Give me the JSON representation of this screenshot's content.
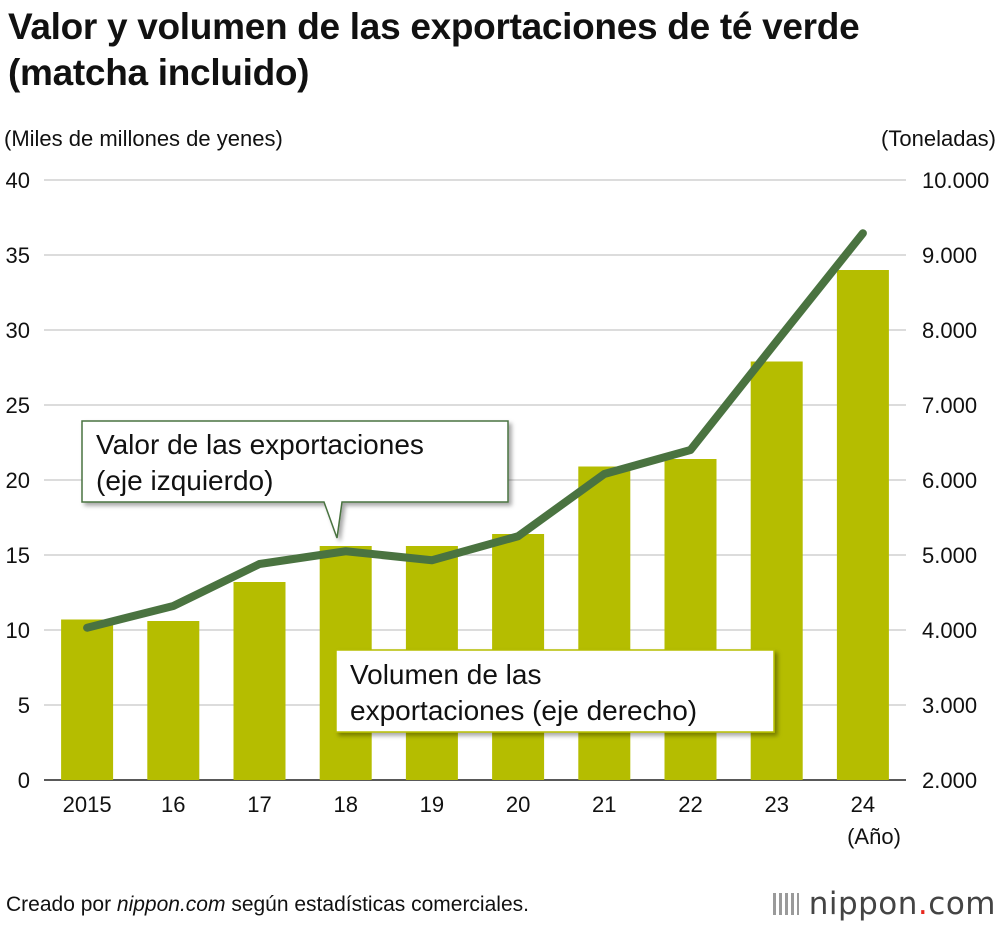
{
  "title": "Valor y volumen de las exportaciones de té verde (matcha incluido)",
  "footer": {
    "prefix": "Creado por ",
    "site": "nippon.com",
    "suffix": " según estadísticas comerciales."
  },
  "logo": {
    "name": "nippon",
    "dot": ".",
    "tld": "com"
  },
  "chart_data": {
    "type": "bar+line",
    "categories": [
      "2015",
      "16",
      "17",
      "18",
      "19",
      "20",
      "21",
      "22",
      "23",
      "24"
    ],
    "x_unit": "(Año)",
    "left_axis": {
      "label": "(Miles de millones de yenes)",
      "ylim": [
        0,
        40
      ],
      "ticks": [
        "0",
        "5",
        "10",
        "15",
        "20",
        "25",
        "30",
        "35",
        "40"
      ]
    },
    "right_axis": {
      "label": "(Toneladas)",
      "ylim": [
        2000,
        10000
      ],
      "ticks": [
        "2.000",
        "3.000",
        "4.000",
        "5.000",
        "6.000",
        "7.000",
        "8.000",
        "9.000",
        "10.000"
      ]
    },
    "series": [
      {
        "name": "Valor de las exportaciones (eje izquierdo)",
        "type": "bar",
        "axis": "left",
        "color": "#b5bd00",
        "values": [
          10.7,
          10.6,
          13.2,
          15.6,
          15.6,
          16.4,
          20.9,
          21.4,
          27.9,
          34.0
        ]
      },
      {
        "name": "Volumen de las exportaciones (eje derecho)",
        "type": "line",
        "axis": "right",
        "color": "#4a7340",
        "values": [
          4030,
          4320,
          4880,
          5050,
          4930,
          5250,
          6080,
          6400,
          7850,
          9290
        ]
      }
    ],
    "annotations": [
      {
        "series": 0,
        "lines": [
          "Valor de las exportaciones",
          "(eje izquierdo)"
        ]
      },
      {
        "series": 1,
        "lines": [
          "Volumen de las",
          "exportaciones (eje derecho)"
        ]
      }
    ],
    "grid": true
  }
}
